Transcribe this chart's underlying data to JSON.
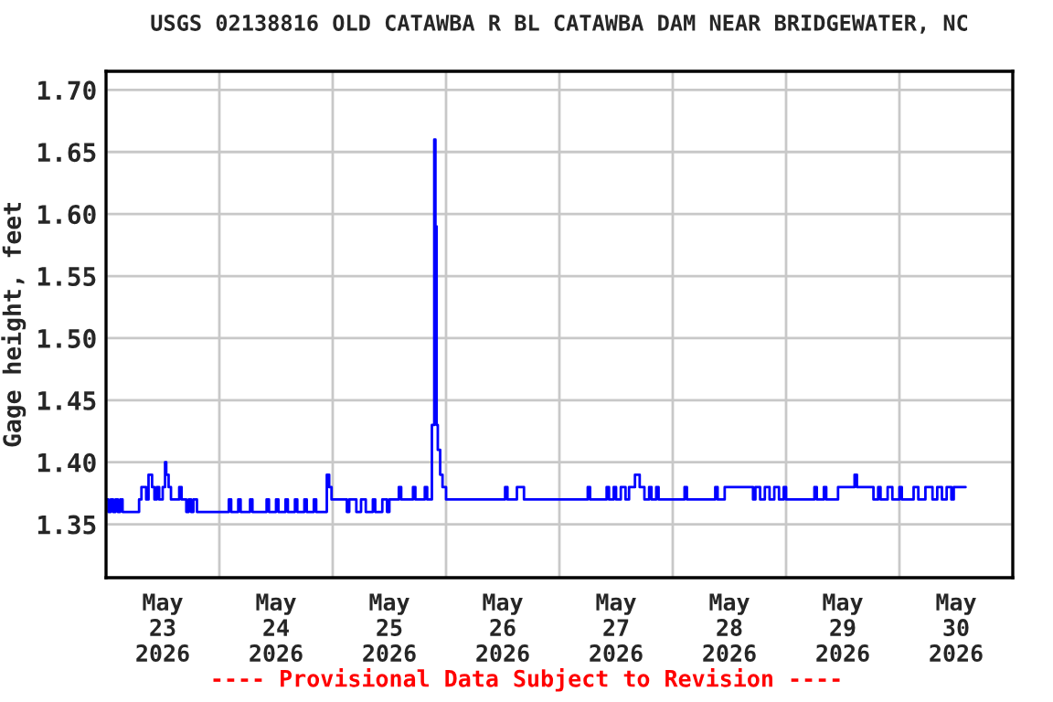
{
  "chart_data": {
    "type": "step",
    "title": "USGS 02138816 OLD CATAWBA R BL CATAWBA DAM NEAR BRIDGEWATER, NC",
    "ylabel": "Gage height, feet",
    "annotations": [
      "---- Provisional Data Subject to Revision ----"
    ],
    "x": [
      "2026-05-23T00:00",
      "2026-05-23T00:30",
      "2026-05-23T01:00",
      "2026-05-23T01:30",
      "2026-05-23T02:00",
      "2026-05-23T02:30",
      "2026-05-23T03:00",
      "2026-05-23T03:30",
      "2026-05-23T07:00",
      "2026-05-23T07:30",
      "2026-05-23T08:30",
      "2026-05-23T09:00",
      "2026-05-23T09:45",
      "2026-05-23T10:15",
      "2026-05-23T10:45",
      "2026-05-23T11:15",
      "2026-05-23T12:00",
      "2026-05-23T12:30",
      "2026-05-23T12:45",
      "2026-05-23T13:15",
      "2026-05-23T13:45",
      "2026-05-23T15:30",
      "2026-05-23T16:00",
      "2026-05-23T17:00",
      "2026-05-23T17:30",
      "2026-05-23T18:00",
      "2026-05-23T18:30",
      "2026-05-23T19:15",
      "2026-05-24T02:00",
      "2026-05-24T02:30",
      "2026-05-24T04:00",
      "2026-05-24T04:30",
      "2026-05-24T06:30",
      "2026-05-24T07:00",
      "2026-05-24T10:00",
      "2026-05-24T10:30",
      "2026-05-24T12:00",
      "2026-05-24T12:30",
      "2026-05-24T14:00",
      "2026-05-24T14:30",
      "2026-05-24T16:00",
      "2026-05-24T16:30",
      "2026-05-24T18:00",
      "2026-05-24T18:30",
      "2026-05-24T20:00",
      "2026-05-24T20:30",
      "2026-05-24T22:45",
      "2026-05-24T23:15",
      "2026-05-24T23:45",
      "2026-05-25T03:00",
      "2026-05-25T03:30",
      "2026-05-25T05:00",
      "2026-05-25T06:00",
      "2026-05-25T07:00",
      "2026-05-25T08:30",
      "2026-05-25T09:00",
      "2026-05-25T10:30",
      "2026-05-25T11:30",
      "2026-05-25T12:00",
      "2026-05-25T14:00",
      "2026-05-25T14:30",
      "2026-05-25T17:00",
      "2026-05-25T17:30",
      "2026-05-25T19:30",
      "2026-05-25T20:00",
      "2026-05-25T21:00",
      "2026-05-25T21:30",
      "2026-05-25T21:45",
      "2026-05-25T22:00",
      "2026-05-25T22:15",
      "2026-05-25T22:45",
      "2026-05-25T23:15",
      "2026-05-26T00:00",
      "2026-05-26T12:30",
      "2026-05-26T13:00",
      "2026-05-26T15:00",
      "2026-05-26T16:30",
      "2026-05-27T06:00",
      "2026-05-27T06:30",
      "2026-05-27T10:00",
      "2026-05-27T10:30",
      "2026-05-27T11:30",
      "2026-05-27T12:00",
      "2026-05-27T13:00",
      "2026-05-27T14:00",
      "2026-05-27T14:45",
      "2026-05-27T16:00",
      "2026-05-27T17:00",
      "2026-05-27T18:00",
      "2026-05-27T19:00",
      "2026-05-27T19:30",
      "2026-05-27T20:30",
      "2026-05-27T21:00",
      "2026-05-28T02:30",
      "2026-05-28T03:00",
      "2026-05-28T09:00",
      "2026-05-28T09:30",
      "2026-05-28T11:00",
      "2026-05-28T17:00",
      "2026-05-28T17:30",
      "2026-05-28T18:30",
      "2026-05-28T19:30",
      "2026-05-28T20:30",
      "2026-05-28T21:30",
      "2026-05-28T22:30",
      "2026-05-28T23:30",
      "2026-05-29T00:00",
      "2026-05-29T06:00",
      "2026-05-29T06:30",
      "2026-05-29T08:00",
      "2026-05-29T08:30",
      "2026-05-29T11:00",
      "2026-05-29T14:30",
      "2026-05-29T15:00",
      "2026-05-29T18:30",
      "2026-05-29T19:30",
      "2026-05-29T20:00",
      "2026-05-29T21:30",
      "2026-05-29T22:30",
      "2026-05-30T00:00",
      "2026-05-30T00:30",
      "2026-05-30T03:00",
      "2026-05-30T04:00",
      "2026-05-30T05:30",
      "2026-05-30T07:00",
      "2026-05-30T08:00",
      "2026-05-30T09:00",
      "2026-05-30T10:00",
      "2026-05-30T11:00",
      "2026-05-30T11:30",
      "2026-05-30T14:00"
    ],
    "series": [
      {
        "color": "#0000ff",
        "values": [
          1.37,
          1.36,
          1.37,
          1.36,
          1.37,
          1.36,
          1.37,
          1.36,
          1.37,
          1.38,
          1.37,
          1.39,
          1.38,
          1.37,
          1.38,
          1.37,
          1.38,
          1.4,
          1.39,
          1.38,
          1.37,
          1.38,
          1.37,
          1.36,
          1.37,
          1.36,
          1.37,
          1.36,
          1.37,
          1.36,
          1.37,
          1.36,
          1.37,
          1.36,
          1.37,
          1.36,
          1.37,
          1.36,
          1.37,
          1.36,
          1.37,
          1.36,
          1.37,
          1.36,
          1.37,
          1.36,
          1.39,
          1.38,
          1.37,
          1.36,
          1.37,
          1.36,
          1.37,
          1.36,
          1.37,
          1.36,
          1.37,
          1.36,
          1.37,
          1.38,
          1.37,
          1.38,
          1.37,
          1.38,
          1.37,
          1.43,
          1.66,
          1.59,
          1.43,
          1.41,
          1.39,
          1.38,
          1.37,
          1.38,
          1.37,
          1.38,
          1.37,
          1.38,
          1.37,
          1.38,
          1.37,
          1.38,
          1.37,
          1.38,
          1.37,
          1.38,
          1.39,
          1.38,
          1.37,
          1.38,
          1.37,
          1.38,
          1.37,
          1.38,
          1.37,
          1.38,
          1.37,
          1.38,
          1.37,
          1.38,
          1.37,
          1.38,
          1.37,
          1.38,
          1.37,
          1.38,
          1.37,
          1.38,
          1.37,
          1.38,
          1.37,
          1.38,
          1.39,
          1.38,
          1.37,
          1.38,
          1.37,
          1.38,
          1.37,
          1.38,
          1.37,
          1.38,
          1.37,
          1.38,
          1.37,
          1.38,
          1.37,
          1.38,
          1.37,
          1.38,
          1.38
        ]
      }
    ],
    "xlim": [
      "2026-05-23",
      "2026-05-31"
    ],
    "xticks": [
      {
        "value": "2026-05-23",
        "label": null
      },
      {
        "value": "2026-05-23T12:00",
        "label": "May\n23\n2026"
      },
      {
        "value": "2026-05-24",
        "label": null
      },
      {
        "value": "2026-05-24T12:00",
        "label": "May\n24\n2026"
      },
      {
        "value": "2026-05-25",
        "label": null
      },
      {
        "value": "2026-05-25T12:00",
        "label": "May\n25\n2026"
      },
      {
        "value": "2026-05-26",
        "label": null
      },
      {
        "value": "2026-05-26T12:00",
        "label": "May\n26\n2026"
      },
      {
        "value": "2026-05-27",
        "label": null
      },
      {
        "value": "2026-05-27T12:00",
        "label": "May\n27\n2026"
      },
      {
        "value": "2026-05-28",
        "label": null
      },
      {
        "value": "2026-05-28T12:00",
        "label": "May\n28\n2026"
      },
      {
        "value": "2026-05-29",
        "label": null
      },
      {
        "value": "2026-05-29T12:00",
        "label": "May\n29\n2026"
      },
      {
        "value": "2026-05-30",
        "label": null
      },
      {
        "value": "2026-05-30T12:00",
        "label": "May\n30\n2026"
      },
      {
        "value": "2026-05-31",
        "label": null
      }
    ],
    "ylim": [
      1.307,
      1.715
    ],
    "yticks": [
      {
        "value": 1.35,
        "label": "1.35"
      },
      {
        "value": 1.4,
        "label": "1.40"
      },
      {
        "value": 1.45,
        "label": "1.45"
      },
      {
        "value": 1.5,
        "label": "1.50"
      },
      {
        "value": 1.55,
        "label": "1.55"
      },
      {
        "value": 1.6,
        "label": "1.60"
      },
      {
        "value": 1.65,
        "label": "1.65"
      },
      {
        "value": 1.7,
        "label": "1.70"
      }
    ],
    "grid": true,
    "legend": false
  }
}
